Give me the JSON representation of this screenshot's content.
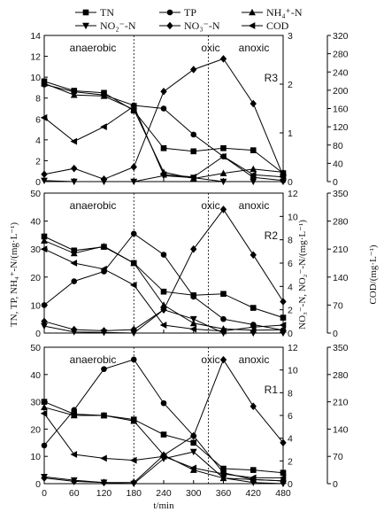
{
  "legend": [
    {
      "label": "TN",
      "marker": "square"
    },
    {
      "label": "TP",
      "marker": "circle"
    },
    {
      "label": "NH₄⁺-N",
      "marker": "triangle-up"
    },
    {
      "label": "NO₂⁻-N",
      "marker": "triangle-down"
    },
    {
      "label": "NO₃⁻-N",
      "marker": "diamond"
    },
    {
      "label": "COD",
      "marker": "triangle-left"
    }
  ],
  "axis_labels": {
    "left": "TN, TP, NH₄⁺-N/(mg·L⁻¹)",
    "right_inner": "NO₃⁻-N, NO₂⁻-N/(mg·L⁻¹)",
    "right_outer": "COD/(mg·L⁻¹)",
    "x": "t/min"
  },
  "phases": [
    "anaerobic",
    "oxic",
    "anoxic"
  ],
  "x_ticks": [
    "0",
    "60",
    "120",
    "180",
    "240",
    "300",
    "360",
    "420",
    "480"
  ],
  "chart_data": [
    {
      "type": "line",
      "panel": "R3",
      "x": [
        0,
        60,
        120,
        180,
        240,
        300,
        360,
        420,
        480
      ],
      "left_axis": {
        "ticks": [
          "0",
          "2",
          "4",
          "6",
          "8",
          "10",
          "12",
          "14"
        ],
        "ylim": [
          0,
          14
        ]
      },
      "inner_axis": {
        "ticks": [
          "0",
          "1",
          "2",
          "3"
        ],
        "ylim": [
          0,
          3
        ]
      },
      "outer_axis": {
        "ticks": [
          "0",
          "40",
          "80",
          "120",
          "160",
          "200",
          "240",
          "280",
          "320"
        ],
        "ylim": [
          0,
          320
        ]
      },
      "series": [
        {
          "name": "TN",
          "axis": "left",
          "values": [
            9.6,
            8.7,
            8.5,
            6.8,
            3.2,
            2.9,
            3.2,
            3.0,
            0.8
          ]
        },
        {
          "name": "TP",
          "axis": "left",
          "values": [
            9.3,
            8.6,
            8.3,
            7.3,
            7.0,
            4.5,
            2.4,
            0.4,
            0.1
          ]
        },
        {
          "name": "NH₄⁺-N",
          "axis": "left",
          "values": [
            9.4,
            8.3,
            8.2,
            6.9,
            0.9,
            0.3,
            0.8,
            1.2,
            0.9
          ]
        },
        {
          "name": "NO₂⁻-N",
          "axis": "inner",
          "values": [
            0.02,
            0.0,
            0.0,
            0.0,
            0.12,
            0.08,
            0.0,
            0.0,
            0.0
          ]
        },
        {
          "name": "NO₃⁻-N",
          "axis": "inner",
          "values": [
            0.15,
            0.27,
            0.05,
            0.3,
            1.85,
            2.3,
            2.52,
            1.6,
            0.12
          ]
        },
        {
          "name": "COD",
          "axis": "outer",
          "values": [
            140,
            88,
            120,
            165,
            15,
            10,
            55,
            15,
            10
          ]
        }
      ]
    },
    {
      "type": "line",
      "panel": "R2",
      "x": [
        0,
        60,
        120,
        180,
        240,
        300,
        360,
        420,
        480
      ],
      "left_axis": {
        "ticks": [
          "0",
          "10",
          "20",
          "30",
          "40",
          "50"
        ],
        "ylim": [
          0,
          50
        ]
      },
      "inner_axis": {
        "ticks": [
          "0",
          "2",
          "4",
          "6",
          "8",
          "10",
          "12"
        ],
        "ylim": [
          0,
          12
        ]
      },
      "outer_axis": {
        "ticks": [
          "0",
          "70",
          "140",
          "210",
          "280",
          "350"
        ],
        "ylim": [
          0,
          350
        ]
      },
      "series": [
        {
          "name": "TN",
          "axis": "left",
          "values": [
            34.5,
            29.5,
            30.8,
            25.0,
            14.8,
            13.5,
            14.0,
            9.0,
            5.5
          ]
        },
        {
          "name": "TP",
          "axis": "left",
          "values": [
            10.0,
            18.5,
            22.0,
            35.5,
            28.0,
            13.0,
            5.0,
            3.0,
            1.0
          ]
        },
        {
          "name": "NH₄⁺-N",
          "axis": "left",
          "values": [
            33.0,
            28.5,
            31.0,
            25.0,
            10.0,
            3.5,
            1.5,
            1.0,
            1.2
          ]
        },
        {
          "name": "NO₂⁻-N",
          "axis": "inner",
          "values": [
            0.6,
            0.1,
            0.05,
            0.0,
            2.0,
            1.2,
            0.0,
            0.0,
            0.0
          ]
        },
        {
          "name": "NO₃⁻-N",
          "axis": "inner",
          "values": [
            1.0,
            0.3,
            0.2,
            0.3,
            2.0,
            7.2,
            10.6,
            6.7,
            2.7
          ]
        },
        {
          "name": "COD",
          "axis": "outer",
          "values": [
            210,
            175,
            160,
            120,
            20,
            10,
            5,
            15,
            20
          ]
        }
      ]
    },
    {
      "type": "line",
      "panel": "R1",
      "x": [
        0,
        60,
        120,
        180,
        240,
        300,
        360,
        420,
        480
      ],
      "left_axis": {
        "ticks": [
          "0",
          "10",
          "20",
          "30",
          "40",
          "50"
        ],
        "ylim": [
          0,
          50
        ]
      },
      "inner_axis": {
        "ticks": [
          "0",
          "2",
          "4",
          "6",
          "8",
          "10",
          "12"
        ],
        "ylim": [
          0,
          12
        ]
      },
      "outer_axis": {
        "ticks": [
          "0",
          "70",
          "140",
          "210",
          "280",
          "350"
        ],
        "ylim": [
          0,
          350
        ]
      },
      "series": [
        {
          "name": "TN",
          "axis": "left",
          "values": [
            30.0,
            25.5,
            25.0,
            23.5,
            18.0,
            15.0,
            5.5,
            5.0,
            4.0
          ]
        },
        {
          "name": "TP",
          "axis": "left",
          "values": [
            14.0,
            27.0,
            42.0,
            45.5,
            29.5,
            17.5,
            4.0,
            1.5,
            1.0
          ]
        },
        {
          "name": "NH₄⁺-N",
          "axis": "left",
          "values": [
            28.0,
            25.0,
            25.0,
            23.0,
            10.5,
            5.0,
            2.0,
            1.5,
            1.0
          ]
        },
        {
          "name": "NO₂⁻-N",
          "axis": "inner",
          "values": [
            0.6,
            0.3,
            0.1,
            0.0,
            2.2,
            2.8,
            0.5,
            0.1,
            0.0
          ]
        },
        {
          "name": "NO₃⁻-N",
          "axis": "inner",
          "values": [
            0.5,
            0.2,
            0.1,
            0.1,
            2.5,
            4.2,
            10.9,
            6.8,
            3.6
          ]
        },
        {
          "name": "COD",
          "axis": "outer",
          "values": [
            180,
            75,
            65,
            60,
            70,
            40,
            25,
            15,
            15
          ]
        }
      ]
    }
  ]
}
